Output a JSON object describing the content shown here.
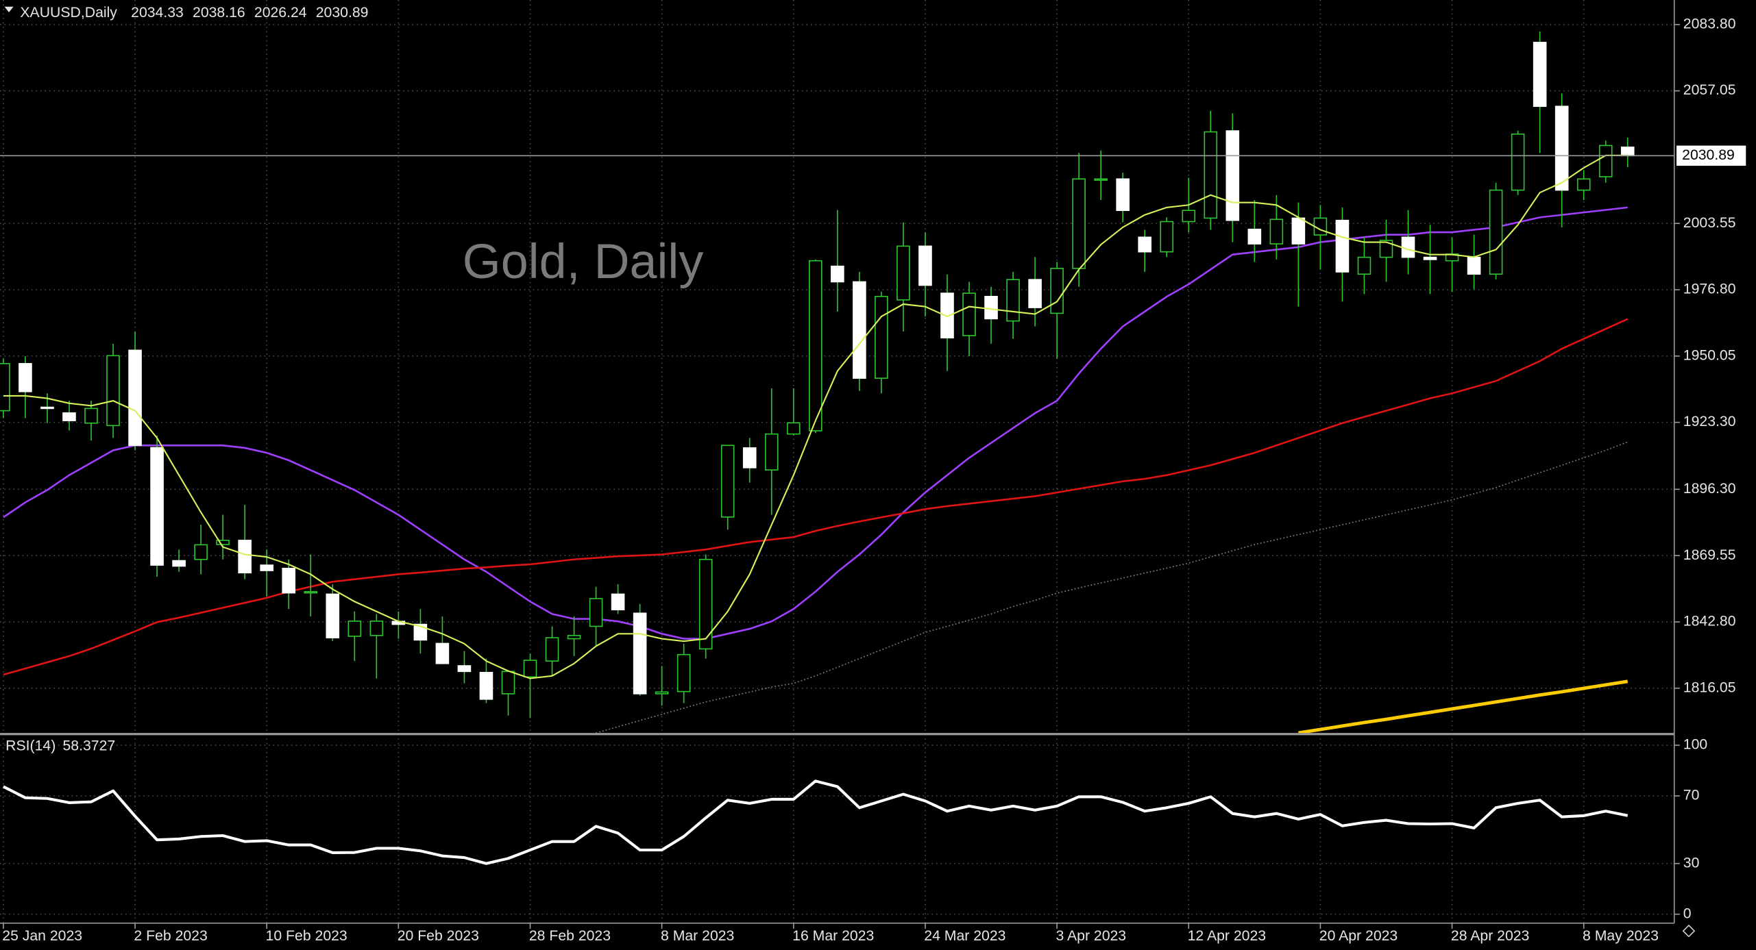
{
  "chart_data": [
    {
      "type": "candlestick",
      "symbol": "XAUUSD,Daily",
      "watermark": "Gold, Daily",
      "open": [
        1928,
        1947,
        1929.4,
        1927.1,
        1923,
        1922,
        1952.4,
        1913.1,
        1867.5,
        1868,
        1874,
        1875.7,
        1865.7,
        1864.4,
        1854.5,
        1854,
        1837,
        1837.3,
        1843,
        1841.8,
        1834.1,
        1825.1,
        1822.4,
        1813.8,
        1820.6,
        1827,
        1836,
        1841,
        1854,
        1846.3,
        1813.8,
        1814.7,
        1831.9,
        1885.1,
        1913,
        1904.1,
        1918.6,
        1919.9,
        1986.3,
        1980,
        1941.1,
        1972.7,
        1994.4,
        1975.4,
        1958.3,
        1974.1,
        1964.2,
        1980.9,
        1967.3,
        1985.4,
        2021,
        2021.5,
        1998,
        1992.1,
        2004.3,
        2005.7,
        2040.9,
        2001.2,
        1995.3,
        2005.7,
        1998.9,
        2004.8,
        1983.1,
        1989.9,
        1998,
        1989.9,
        1988.5,
        1989.9,
        1983.1,
        2017,
        2076.6,
        2050.8,
        2017,
        2022.4,
        2034.33
      ],
      "high": [
        1949,
        1950,
        1935,
        1932,
        1932,
        1955,
        1959.8,
        1918,
        1872,
        1882,
        1886,
        1890,
        1872,
        1868,
        1870,
        1858,
        1847,
        1846,
        1847,
        1848,
        1845,
        1831,
        1828,
        1822,
        1830,
        1841,
        1845,
        1857,
        1858,
        1850,
        1825,
        1834,
        1870,
        1914,
        1917,
        1937,
        1937,
        1989,
        2009,
        1984,
        1976,
        2004,
        2000,
        1983,
        1980,
        1978,
        1984,
        1990,
        1988,
        2032,
        2033,
        2024,
        2001,
        2006,
        2022,
        2049,
        2048,
        2013,
        2015,
        2012,
        2011,
        2010,
        1998,
        2005,
        2009,
        2003,
        1998,
        1999,
        2020,
        2041,
        2081,
        2056,
        2025,
        2037,
        2038.16
      ],
      "low": [
        1925,
        1925,
        1923,
        1920,
        1916,
        1917,
        1912,
        1861,
        1863,
        1862,
        1868,
        1860,
        1853,
        1848,
        1845,
        1835,
        1827,
        1820,
        1836,
        1830,
        1826,
        1818,
        1810,
        1805,
        1804,
        1821,
        1829,
        1833,
        1846,
        1813,
        1809,
        1810,
        1828,
        1880,
        1899,
        1886,
        1918,
        1919,
        1968,
        1936,
        1935,
        1960,
        1966,
        1944,
        1950,
        1955,
        1957,
        1962,
        1949,
        1978,
        2013,
        2004,
        1984,
        1990,
        2000,
        2001,
        1996,
        1988,
        1989,
        1970,
        1985,
        1972,
        1975,
        1980,
        1983,
        1975,
        1976,
        1977,
        1981,
        2015,
        2032,
        2002,
        2013,
        2020,
        2026.24
      ],
      "close": [
        1947,
        1935.7,
        1928.9,
        1924,
        1928.9,
        1950.2,
        1914,
        1865.7,
        1865.3,
        1873.9,
        1875.7,
        1862.6,
        1863.5,
        1854.5,
        1855,
        1836.4,
        1843.1,
        1843.1,
        1841.8,
        1835.5,
        1826,
        1822.8,
        1811.6,
        1822.8,
        1827.3,
        1836.4,
        1837.3,
        1852.2,
        1847.7,
        1813.8,
        1814.5,
        1829.6,
        1868,
        1914,
        1905,
        1918.6,
        1923.1,
        1988.5,
        1980,
        1941.1,
        1974.1,
        1994.4,
        1978.6,
        1957.4,
        1975.4,
        1965.1,
        1980.9,
        1969.6,
        1985.4,
        2021.5,
        2021.5,
        2008.8,
        1992.1,
        2004.3,
        2008.8,
        2040.5,
        2004.8,
        1995.3,
        2005.2,
        1995.3,
        2005.7,
        1984,
        1989.9,
        1996.7,
        1989.9,
        1989,
        1991.2,
        1983.1,
        2017,
        2039.6,
        2050.8,
        2017,
        2021.5,
        2035,
        2030.89
      ],
      "up_color": "#000000",
      "down_color": "#ffffff",
      "wick_color": "#2fc42f",
      "overlays": [
        {
          "color": "#d6f25a",
          "width": 1.3,
          "style": "solid",
          "values": [
            1934,
            1934,
            1933,
            1931,
            1930,
            1932,
            1928,
            1917,
            1902,
            1887,
            1873,
            1870,
            1869,
            1866,
            1862,
            1856,
            1851,
            1847,
            1843,
            1841,
            1838,
            1834,
            1827,
            1823,
            1820,
            1821,
            1826,
            1833,
            1838,
            1838,
            1836,
            1835,
            1836,
            1847,
            1862,
            1882,
            1902,
            1924,
            1944,
            1955,
            1966,
            1971,
            1970,
            1966,
            1970,
            1969,
            1968,
            1967,
            1972,
            1985,
            1995,
            2002,
            2007,
            2010,
            2011,
            2015,
            2012,
            2012,
            2011,
            2006,
            2001,
            1998,
            1996,
            1996,
            1993,
            1991,
            1991,
            1990,
            1993,
            2003,
            2016,
            2020,
            2026,
            2031,
            2031
          ]
        },
        {
          "color": "#a040ff",
          "width": 1.6,
          "style": "solid",
          "values": [
            1885,
            1891,
            1896,
            1902,
            1907,
            1912,
            1914,
            1914,
            1914,
            1914,
            1914,
            1913,
            1911,
            1908,
            1904,
            1900,
            1896,
            1891,
            1886,
            1880,
            1874,
            1868,
            1863,
            1857,
            1851,
            1846,
            1844,
            1844,
            1843,
            1841,
            1838,
            1836,
            1836,
            1838,
            1840,
            1843,
            1848,
            1855,
            1863,
            1870,
            1878,
            1887,
            1895,
            1902,
            1909,
            1915,
            1921,
            1927,
            1932,
            1943,
            1953,
            1962,
            1968,
            1974,
            1979,
            1985,
            1991,
            1992,
            1993,
            1994,
            1996,
            1997,
            1998,
            1999,
            1999,
            2000,
            2000,
            2001,
            2002,
            2004,
            2006,
            2007,
            2008,
            2009,
            2010
          ]
        },
        {
          "color": "#e01414",
          "width": 1.6,
          "style": "solid",
          "values": [
            1821.5,
            1824,
            1826.5,
            1829,
            1832,
            1835.5,
            1839,
            1842.7,
            1844.5,
            1846.5,
            1848.5,
            1850.5,
            1852.5,
            1855,
            1857,
            1859,
            1860,
            1861,
            1862,
            1862.7,
            1863.5,
            1864.3,
            1864.8,
            1865.5,
            1866,
            1867,
            1868,
            1868.6,
            1869.3,
            1869.6,
            1870,
            1871,
            1872,
            1873.5,
            1875,
            1876,
            1877,
            1879.5,
            1881.5,
            1883.3,
            1885,
            1886.6,
            1888.3,
            1889.5,
            1890.5,
            1891.5,
            1892.5,
            1893.5,
            1895,
            1896.5,
            1898,
            1899.5,
            1900.5,
            1902,
            1904,
            1906,
            1908.5,
            1911,
            1914,
            1917,
            1920,
            1923,
            1925.5,
            1928,
            1930.5,
            1933,
            1935,
            1937.5,
            1940,
            1944,
            1948,
            1953,
            1957,
            1961,
            1965
          ]
        },
        {
          "color": "#8a8a8a",
          "width": 1,
          "style": "dotted",
          "values": [
            null,
            null,
            null,
            null,
            null,
            null,
            null,
            null,
            null,
            null,
            null,
            null,
            null,
            null,
            null,
            null,
            null,
            null,
            null,
            null,
            null,
            null,
            null,
            null,
            null,
            null,
            null,
            1798,
            1800.5,
            1803,
            1805.5,
            1808,
            1810.5,
            1812.5,
            1814.5,
            1816.5,
            1818,
            1821,
            1824.5,
            1828,
            1831.5,
            1835,
            1838.6,
            1841,
            1843.5,
            1846,
            1849,
            1851.5,
            1854.4,
            1856.5,
            1858.5,
            1860.5,
            1862.5,
            1864.5,
            1866.5,
            1869,
            1871.5,
            1874,
            1876,
            1878,
            1880,
            1882,
            1884,
            1886,
            1888,
            1890,
            1892,
            1894.5,
            1897,
            1900,
            1903,
            1906,
            1909,
            1912,
            1915.4
          ]
        },
        {
          "color": "#ffcc00",
          "width": 3,
          "style": "solid",
          "values": [
            null,
            null,
            null,
            null,
            null,
            null,
            null,
            null,
            null,
            null,
            null,
            null,
            null,
            null,
            null,
            null,
            null,
            null,
            null,
            null,
            null,
            null,
            null,
            null,
            null,
            null,
            null,
            null,
            null,
            null,
            null,
            null,
            null,
            null,
            null,
            null,
            null,
            null,
            null,
            null,
            null,
            null,
            null,
            null,
            null,
            null,
            null,
            null,
            null,
            null,
            null,
            null,
            null,
            null,
            null,
            null,
            null,
            null,
            null,
            1798,
            1799.4,
            1800.8,
            1802.2,
            1803.5,
            1804.9,
            1806.3,
            1807.7,
            1809.1,
            1810.5,
            1811.9,
            1813.3,
            1814.6,
            1816,
            1817.4,
            1818.8
          ]
        }
      ],
      "ylim": [
        1798,
        2093.7
      ],
      "yticks": [
        {
          "value": 2083.8,
          "label": "2083.80"
        },
        2057.05,
        2003.55,
        {
          "value": 1976.8,
          "label": "1976.80"
        },
        1950.05,
        {
          "value": 1923.3,
          "label": "1923.30"
        },
        {
          "value": 1896.3,
          "label": "1896.30"
        },
        1869.55,
        {
          "value": 1842.8,
          "label": "1842.80"
        },
        1816.05
      ],
      "grid": true
    },
    {
      "type": "line",
      "title": "RSI(14)",
      "categories": [
        "25 Jan 2023",
        null,
        null,
        null,
        null,
        null,
        "2 Feb 2023",
        null,
        null,
        null,
        null,
        null,
        "10 Feb 2023",
        null,
        null,
        null,
        null,
        null,
        "20 Feb 2023",
        null,
        null,
        null,
        null,
        null,
        "28 Feb 2023",
        null,
        null,
        null,
        null,
        null,
        "8 Mar 2023",
        null,
        null,
        null,
        null,
        null,
        "16 Mar 2023",
        null,
        null,
        null,
        null,
        null,
        "24 Mar 2023",
        null,
        null,
        null,
        null,
        null,
        "3 Apr 2023",
        null,
        null,
        null,
        null,
        null,
        "12 Apr 2023",
        null,
        null,
        null,
        null,
        null,
        "20 Apr 2023",
        null,
        null,
        null,
        null,
        null,
        "28 Apr 2023",
        null,
        null,
        null,
        null,
        null,
        "8 May 2023",
        null,
        null
      ],
      "values": [
        75.5,
        68.9,
        68.5,
        66,
        66.5,
        73,
        58,
        44,
        44.5,
        46,
        46.5,
        43,
        43.5,
        41,
        41,
        36.4,
        36.5,
        39,
        39,
        37.5,
        34.5,
        33.5,
        30,
        33,
        38,
        43,
        43,
        52,
        48,
        38,
        38,
        46,
        57,
        67.5,
        65.6,
        68,
        68,
        78.8,
        75.5,
        63,
        67,
        71,
        67,
        61,
        64,
        61.6,
        64,
        61.6,
        64,
        69.5,
        69.5,
        66.2,
        61,
        63,
        65.6,
        69.5,
        59.6,
        57.6,
        59.6,
        56.3,
        59,
        52.3,
        54.3,
        55.6,
        53.6,
        53.4,
        53.6,
        51,
        63,
        65.6,
        67.5,
        57.6,
        58.3,
        61,
        58.3727
      ],
      "color": "#ffffff",
      "ylim": [
        0,
        100
      ],
      "yticks": [
        0,
        30,
        70,
        100
      ],
      "grid": true
    }
  ]
}
